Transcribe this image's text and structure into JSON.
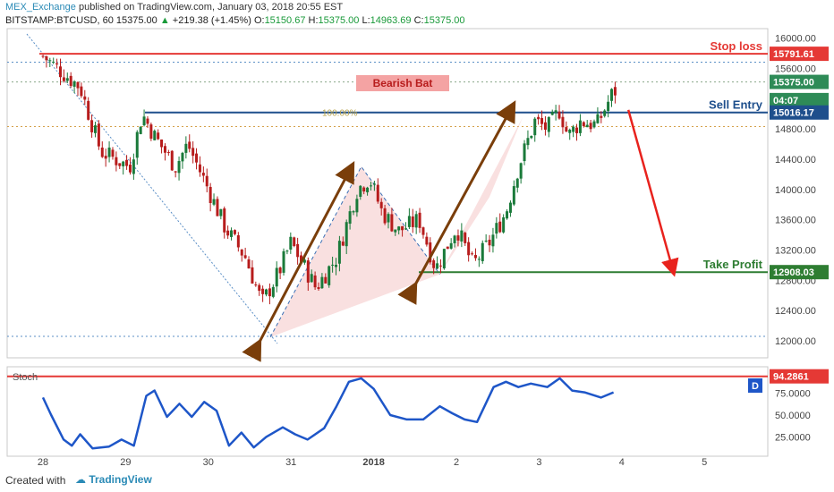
{
  "header": {
    "author": "MEX_Exchange",
    "published": "published on TradingView.com, January 03, 2018 20:55 EST",
    "symbol": "BITSTAMP:BTCUSD, 60",
    "last": "15375.00",
    "change": "+219.38 (+1.45%)",
    "open_label": "O:",
    "open": "15150.67",
    "high_label": "H:",
    "high": "15375.00",
    "low_label": "L:",
    "low": "14963.69",
    "close_label": "C:",
    "close": "15375.00"
  },
  "footer": {
    "created_with": "Created with",
    "brand": "TradingView"
  },
  "colors": {
    "up": "#1a7a3a",
    "down": "#b71c1c",
    "stop": "#e53935",
    "sell": "#1e4f8c",
    "target": "#2e7d32",
    "arrow": "#7a3e0a",
    "forecast": "#e8221d",
    "stoch": "#1e56c8"
  },
  "chart_data": [
    {
      "type": "candlestick",
      "symbol": "BITSTAMP:BTCUSD",
      "interval": "60",
      "x_ticks": [
        "28",
        "29",
        "30",
        "31",
        "2018",
        "2",
        "3",
        "4",
        "5"
      ],
      "y_ticks": [
        "16000.00",
        "15600.00",
        "15200.00",
        "14800.00",
        "14400.00",
        "14000.00",
        "13600.00",
        "13200.00",
        "12800.00",
        "12400.00",
        "12000.00"
      ],
      "ylim": [
        11800,
        16100
      ],
      "pattern_label": "Bearish Bat",
      "fib_label": "100.00%",
      "last_price": "15375.00",
      "countdown": "04:07",
      "levels": [
        {
          "name": "Stop loss",
          "value": 15791.61,
          "label": "15791.61"
        },
        {
          "name": "Sell Entry",
          "value": 15016.17,
          "label": "15016.17"
        },
        {
          "name": "Take Profit",
          "value": 12908.03,
          "label": "12908.03"
        }
      ],
      "anchor_points": [
        {
          "x": 28.0,
          "y": 15760
        },
        {
          "x": 28.45,
          "y": 15350
        },
        {
          "x": 28.7,
          "y": 14500
        },
        {
          "x": 29.05,
          "y": 14300
        },
        {
          "x": 29.2,
          "y": 15000
        },
        {
          "x": 29.35,
          "y": 14700
        },
        {
          "x": 29.6,
          "y": 14300
        },
        {
          "x": 29.75,
          "y": 14600
        },
        {
          "x": 30.0,
          "y": 14000
        },
        {
          "x": 30.2,
          "y": 13500
        },
        {
          "x": 30.45,
          "y": 13100
        },
        {
          "x": 30.65,
          "y": 12500
        },
        {
          "x": 30.85,
          "y": 12900
        },
        {
          "x": 31.0,
          "y": 13300
        },
        {
          "x": 31.3,
          "y": 12700
        },
        {
          "x": 31.55,
          "y": 13100
        },
        {
          "x": 31.8,
          "y": 14000
        },
        {
          "x": 31.95,
          "y": 14150
        },
        {
          "x": 32.1,
          "y": 13700
        },
        {
          "x": 32.3,
          "y": 13450
        },
        {
          "x": 32.55,
          "y": 13600
        },
        {
          "x": 32.75,
          "y": 12950
        },
        {
          "x": 33.0,
          "y": 13500
        },
        {
          "x": 33.2,
          "y": 13000
        },
        {
          "x": 33.4,
          "y": 13300
        },
        {
          "x": 33.6,
          "y": 13700
        },
        {
          "x": 33.75,
          "y": 14300
        },
        {
          "x": 33.95,
          "y": 14900
        },
        {
          "x": 34.1,
          "y": 14800
        },
        {
          "x": 34.25,
          "y": 15050
        },
        {
          "x": 34.35,
          "y": 14700
        },
        {
          "x": 34.5,
          "y": 14900
        },
        {
          "x": 34.7,
          "y": 14850
        },
        {
          "x": 34.9,
          "y": 15300
        }
      ],
      "stochastic": {
        "label": "Stoch",
        "y_ticks": [
          "94.2861",
          "75.0000",
          "50.0000",
          "25.0000"
        ],
        "ylim": [
          0,
          100
        ],
        "current": 94.2861,
        "tag": "D",
        "points": [
          {
            "x": 28.0,
            "y": 70
          },
          {
            "x": 28.1,
            "y": 50
          },
          {
            "x": 28.25,
            "y": 22
          },
          {
            "x": 28.35,
            "y": 15
          },
          {
            "x": 28.45,
            "y": 28
          },
          {
            "x": 28.6,
            "y": 12
          },
          {
            "x": 28.8,
            "y": 14
          },
          {
            "x": 28.95,
            "y": 22
          },
          {
            "x": 29.1,
            "y": 15
          },
          {
            "x": 29.25,
            "y": 72
          },
          {
            "x": 29.35,
            "y": 78
          },
          {
            "x": 29.5,
            "y": 48
          },
          {
            "x": 29.65,
            "y": 63
          },
          {
            "x": 29.8,
            "y": 48
          },
          {
            "x": 29.95,
            "y": 65
          },
          {
            "x": 30.1,
            "y": 55
          },
          {
            "x": 30.25,
            "y": 15
          },
          {
            "x": 30.4,
            "y": 30
          },
          {
            "x": 30.55,
            "y": 13
          },
          {
            "x": 30.7,
            "y": 25
          },
          {
            "x": 30.9,
            "y": 36
          },
          {
            "x": 31.05,
            "y": 28
          },
          {
            "x": 31.2,
            "y": 22
          },
          {
            "x": 31.4,
            "y": 35
          },
          {
            "x": 31.55,
            "y": 60
          },
          {
            "x": 31.7,
            "y": 88
          },
          {
            "x": 31.85,
            "y": 92
          },
          {
            "x": 32.0,
            "y": 80
          },
          {
            "x": 32.2,
            "y": 50
          },
          {
            "x": 32.4,
            "y": 45
          },
          {
            "x": 32.6,
            "y": 45
          },
          {
            "x": 32.8,
            "y": 60
          },
          {
            "x": 32.95,
            "y": 52
          },
          {
            "x": 33.1,
            "y": 45
          },
          {
            "x": 33.25,
            "y": 42
          },
          {
            "x": 33.45,
            "y": 82
          },
          {
            "x": 33.6,
            "y": 88
          },
          {
            "x": 33.75,
            "y": 82
          },
          {
            "x": 33.9,
            "y": 86
          },
          {
            "x": 34.1,
            "y": 82
          },
          {
            "x": 34.25,
            "y": 92
          },
          {
            "x": 34.4,
            "y": 78
          },
          {
            "x": 34.55,
            "y": 76
          },
          {
            "x": 34.75,
            "y": 70
          },
          {
            "x": 34.9,
            "y": 76
          }
        ]
      },
      "forecast_arrow": {
        "from": {
          "x": 35.08,
          "y": 15050
        },
        "to": {
          "x": 35.62,
          "y": 12930
        }
      }
    }
  ]
}
